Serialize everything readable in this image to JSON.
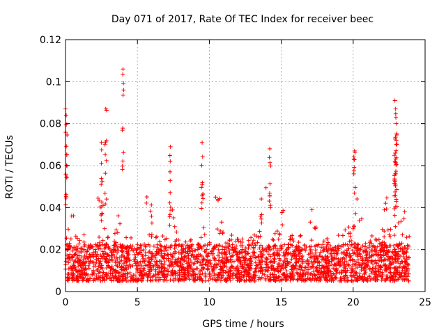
{
  "chart_data": {
    "type": "scatter",
    "title": "Day 071 of 2017, Rate Of TEC Index for receiver beec",
    "xlabel": "GPS time / hours",
    "ylabel": "ROTI / TECUs",
    "xlim": [
      0,
      25
    ],
    "ylim": [
      0,
      0.12
    ],
    "xticks": [
      0,
      5,
      10,
      15,
      20,
      25
    ],
    "yticks": [
      0,
      0.02,
      0.04,
      0.06,
      0.08,
      0.1,
      0.12
    ],
    "xtick_labels": [
      "0",
      "5",
      "10",
      "15",
      "20",
      "25"
    ],
    "ytick_labels": [
      "0",
      "0.02",
      "0.04",
      "0.06",
      "0.08",
      "0.1",
      "0.12"
    ],
    "grid": true,
    "marker": "+",
    "color": "#ff0000",
    "x_range_of_data": [
      0,
      23.9
    ],
    "typical_roti_range": [
      0.005,
      0.03
    ],
    "notable_points": [
      {
        "x": 0.0,
        "y": 0.087
      },
      {
        "x": 0.05,
        "y": 0.084
      },
      {
        "x": 2.5,
        "y": 0.071
      },
      {
        "x": 2.8,
        "y": 0.087
      },
      {
        "x": 4.0,
        "y": 0.106
      },
      {
        "x": 7.3,
        "y": 0.069
      },
      {
        "x": 9.5,
        "y": 0.071
      },
      {
        "x": 14.2,
        "y": 0.068
      },
      {
        "x": 20.1,
        "y": 0.067
      },
      {
        "x": 22.9,
        "y": 0.091
      },
      {
        "x": 22.95,
        "y": 0.087
      },
      {
        "x": 23.0,
        "y": 0.08
      },
      {
        "x": 22.9,
        "y": 0.062
      }
    ]
  }
}
